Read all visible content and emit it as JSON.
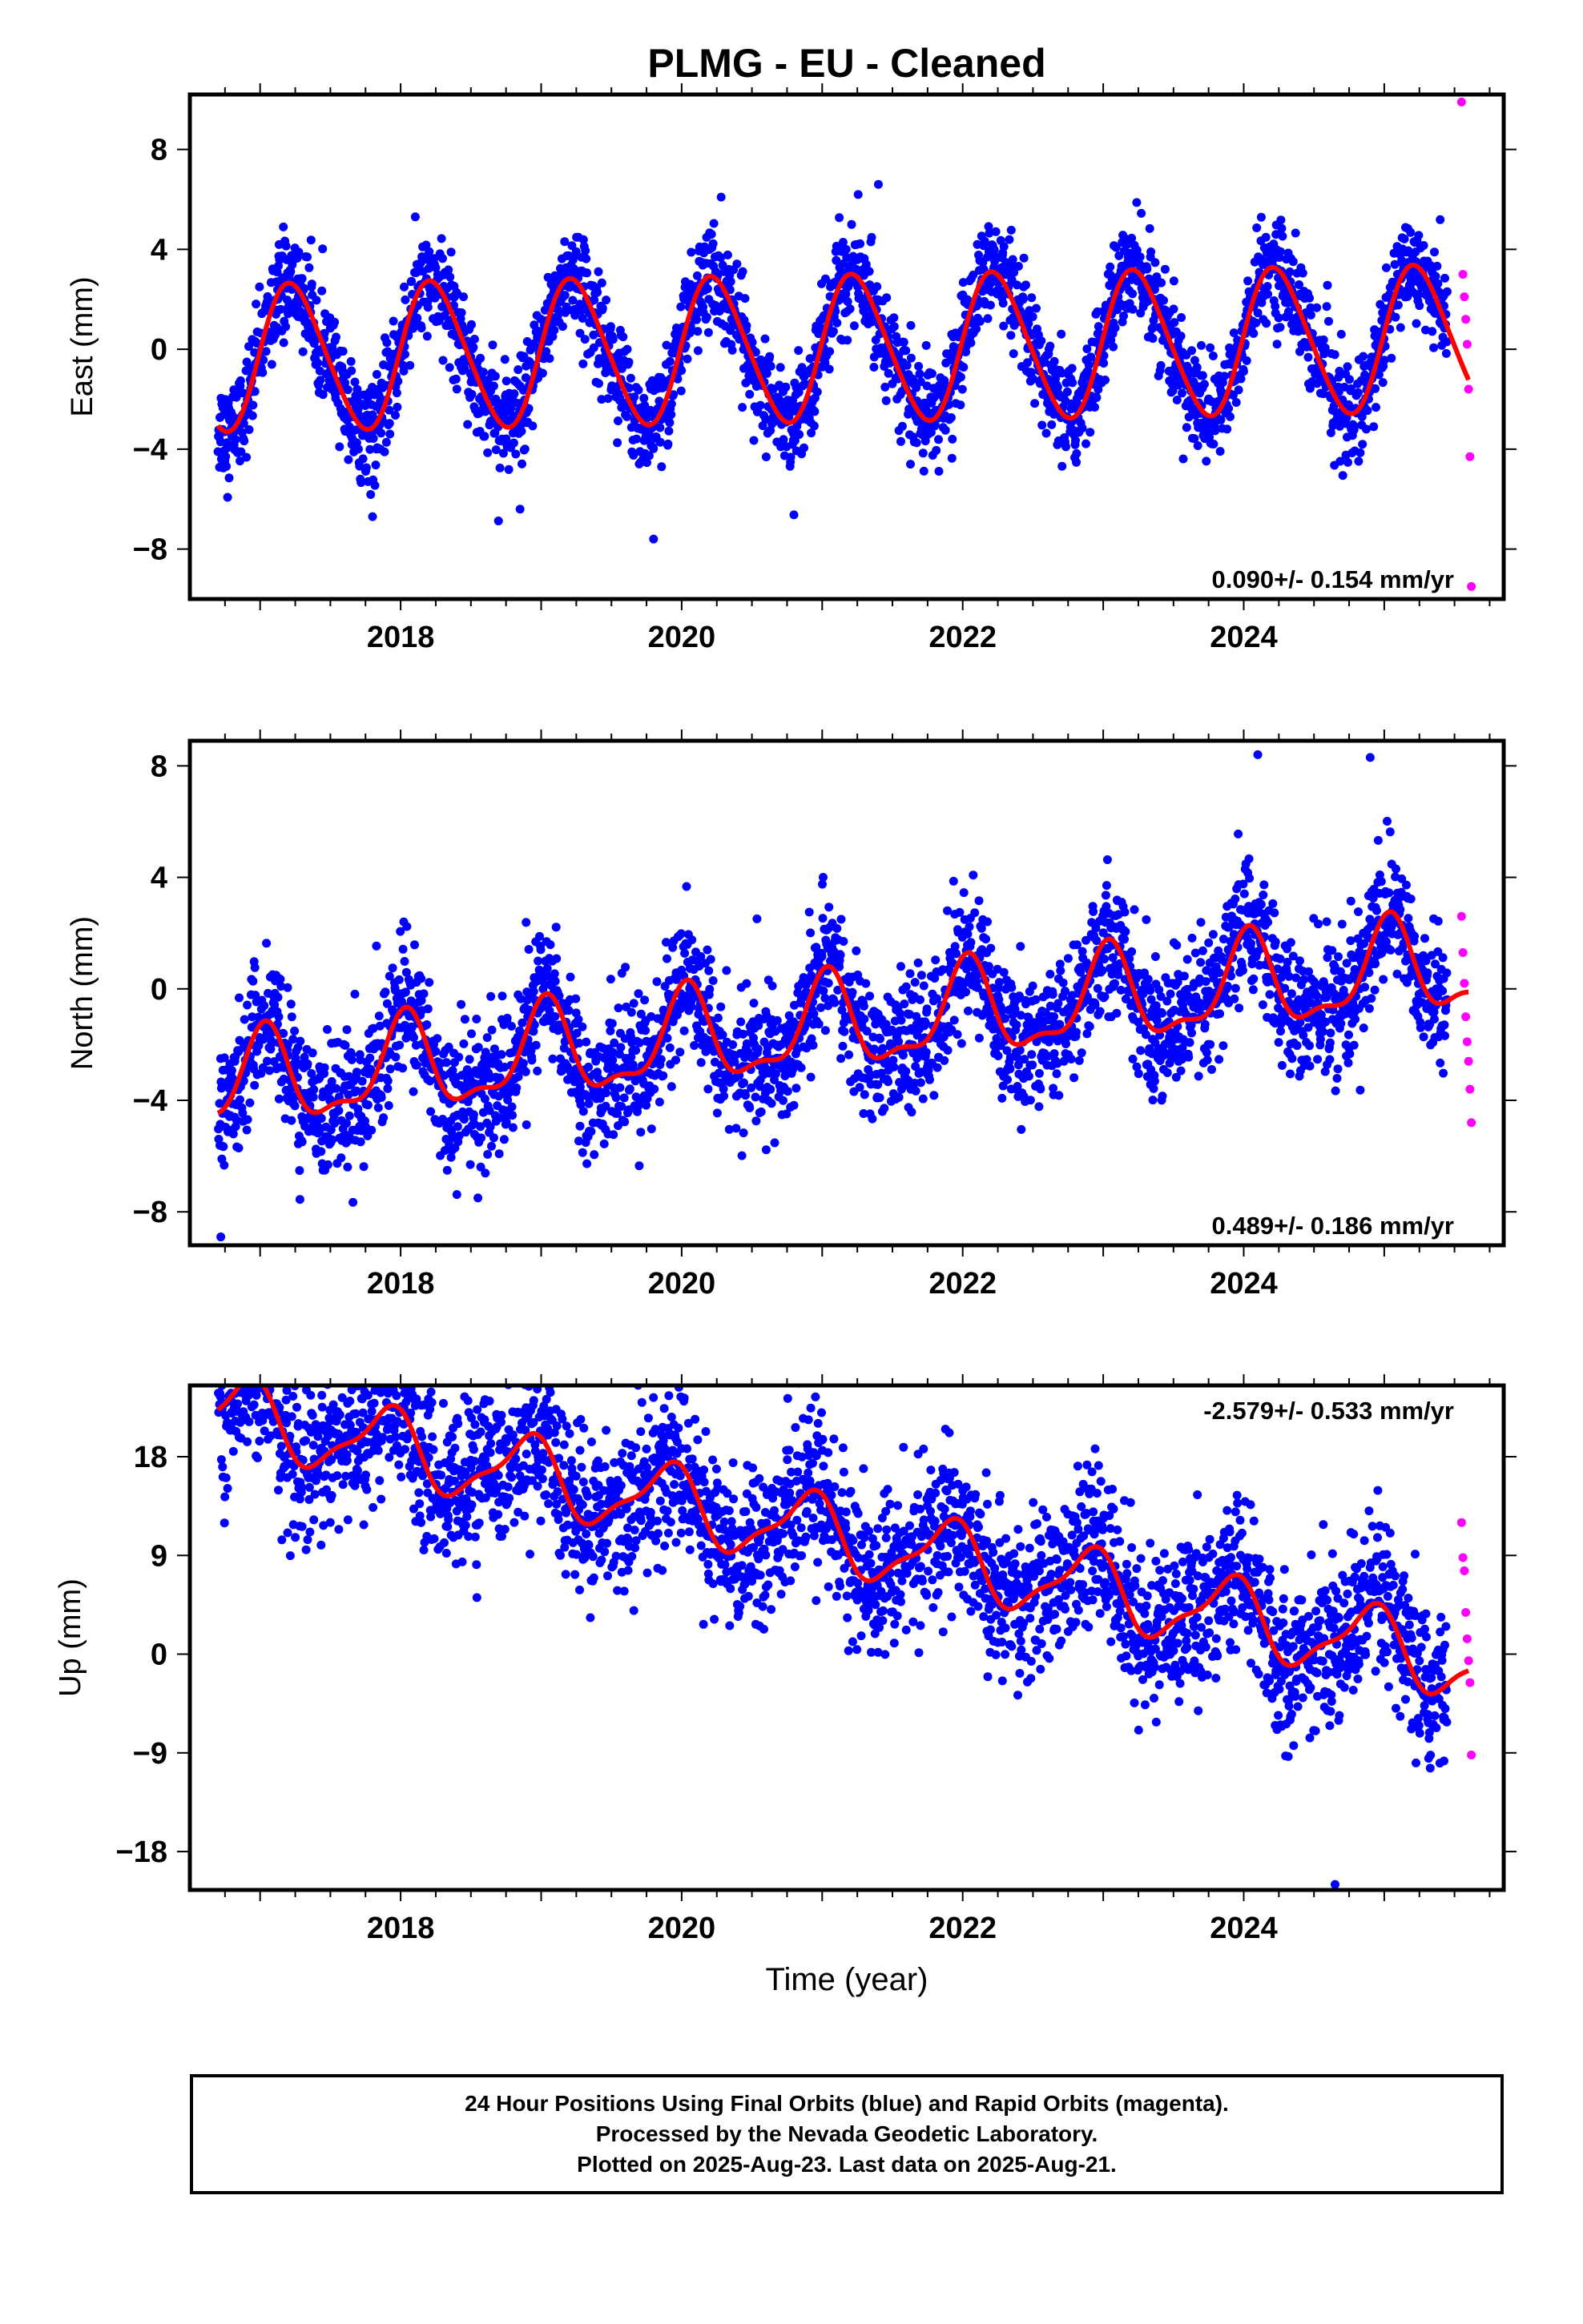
{
  "chart_data": {
    "title": "PLMG  - EU - Cleaned",
    "xlabel": "Time (year)",
    "colors": {
      "final": "#0000ff",
      "rapid": "#ff00ff",
      "model": "#ff0000"
    },
    "legend_placement": "none",
    "charts": [
      {
        "type": "scatter",
        "ylabel": "East (mm)",
        "rate_label": "0.090+/- 0.154 mm/yr",
        "rate_label_position": "bottom-right",
        "xlim": [
          2016.5,
          2025.85
        ],
        "ylim": [
          -10,
          10.2
        ],
        "x_ticks": [
          2018,
          2020,
          2022,
          2024
        ],
        "x_tick_labels": [
          "2018",
          "2020",
          "2022",
          "2024"
        ],
        "y_ticks": [
          -8,
          -4,
          0,
          4,
          8
        ],
        "y_tick_labels": [
          "−8",
          "−4",
          "0",
          "4",
          "8"
        ],
        "model": {
          "trend_mm_per_yr": 0.09,
          "offset": 0,
          "annual_amp": 2.9,
          "annual_phase": 0.1,
          "semiannual_amp": 0.3,
          "start": 2016.7,
          "end": 2025.6
        },
        "final_orbits": {
          "start": 2016.7,
          "end": 2025.45,
          "scatter_sd": 1.0
        },
        "rapid_orbits": {
          "x": [
            2025.55,
            2025.56,
            2025.57,
            2025.58,
            2025.59,
            2025.6,
            2025.61,
            2025.62
          ],
          "y": [
            9.9,
            3.0,
            2.1,
            1.2,
            0.2,
            -1.6,
            -4.3,
            -9.5
          ]
        },
        "outliers": {
          "x": [
            2021.4,
            2019.8,
            2017.8,
            2018.85
          ],
          "y": [
            6.6,
            -7.6,
            -6.7,
            -6.4
          ]
        }
      },
      {
        "type": "scatter",
        "ylabel": "North (mm)",
        "rate_label": "0.489+/- 0.186 mm/yr",
        "rate_label_position": "bottom-right",
        "xlim": [
          2016.5,
          2025.85
        ],
        "ylim": [
          -9.2,
          8.9
        ],
        "x_ticks": [
          2018,
          2020,
          2022,
          2024
        ],
        "x_tick_labels": [
          "2018",
          "2020",
          "2022",
          "2024"
        ],
        "y_ticks": [
          -8,
          -4,
          0,
          4,
          8
        ],
        "y_tick_labels": [
          "−8",
          "−4",
          "0",
          "4",
          "8"
        ],
        "model": {
          "trend_mm_per_yr": 0.489,
          "offset": -1.4,
          "annual_amp": 1.6,
          "annual_phase": 1.4,
          "semiannual_amp": 0.6,
          "start": 2016.7,
          "end": 2025.6
        },
        "final_orbits": {
          "start": 2016.7,
          "end": 2025.45,
          "scatter_sd": 1.2
        },
        "rapid_orbits": {
          "x": [
            2025.55,
            2025.56,
            2025.57,
            2025.58,
            2025.59,
            2025.6,
            2025.61,
            2025.62
          ],
          "y": [
            2.6,
            1.3,
            0.2,
            -1.0,
            -1.9,
            -2.6,
            -3.6,
            -4.8
          ]
        },
        "outliers": {
          "x": [
            2016.72,
            2018.55,
            2024.1,
            2024.9
          ],
          "y": [
            -8.9,
            -7.5,
            8.4,
            8.3
          ]
        }
      },
      {
        "type": "scatter",
        "ylabel": "Up (mm)",
        "rate_label": "-2.579+/- 0.533 mm/yr",
        "rate_label_position": "top-right",
        "xlim": [
          2016.5,
          2025.85
        ],
        "ylim": [
          -21.5,
          24.5
        ],
        "x_ticks": [
          2018,
          2020,
          2022,
          2024
        ],
        "x_tick_labels": [
          "2018",
          "2020",
          "2022",
          "2024"
        ],
        "y_ticks": [
          -18,
          -9,
          0,
          9,
          18
        ],
        "y_tick_labels": [
          "−18",
          "−9",
          "0",
          "9",
          "18"
        ],
        "model": {
          "trend_mm_per_yr": -2.579,
          "offset": 11.0,
          "annual_amp": 3.2,
          "annual_phase": 2.2,
          "semiannual_amp": 1.0,
          "start": 2016.7,
          "end": 2025.6
        },
        "final_orbits": {
          "start": 2016.7,
          "end": 2025.45,
          "scatter_sd": 3.6
        },
        "rapid_orbits": {
          "x": [
            2025.55,
            2025.56,
            2025.57,
            2025.58,
            2025.59,
            2025.6,
            2025.61,
            2025.62
          ],
          "y": [
            12.0,
            8.8,
            7.6,
            3.8,
            1.4,
            -0.6,
            -2.6,
            -9.2
          ]
        },
        "outliers": {
          "x": [
            2018.6,
            2024.65,
            2019.9
          ],
          "y": [
            23.2,
            -21.0,
            18.0
          ]
        }
      }
    ]
  },
  "footer": {
    "line1": "24 Hour Positions Using Final Orbits (blue) and Rapid Orbits (magenta).",
    "line2": "Processed by the Nevada Geodetic Laboratory.",
    "line3": "Plotted on 2025-Aug-23. Last data on 2025-Aug-21."
  }
}
